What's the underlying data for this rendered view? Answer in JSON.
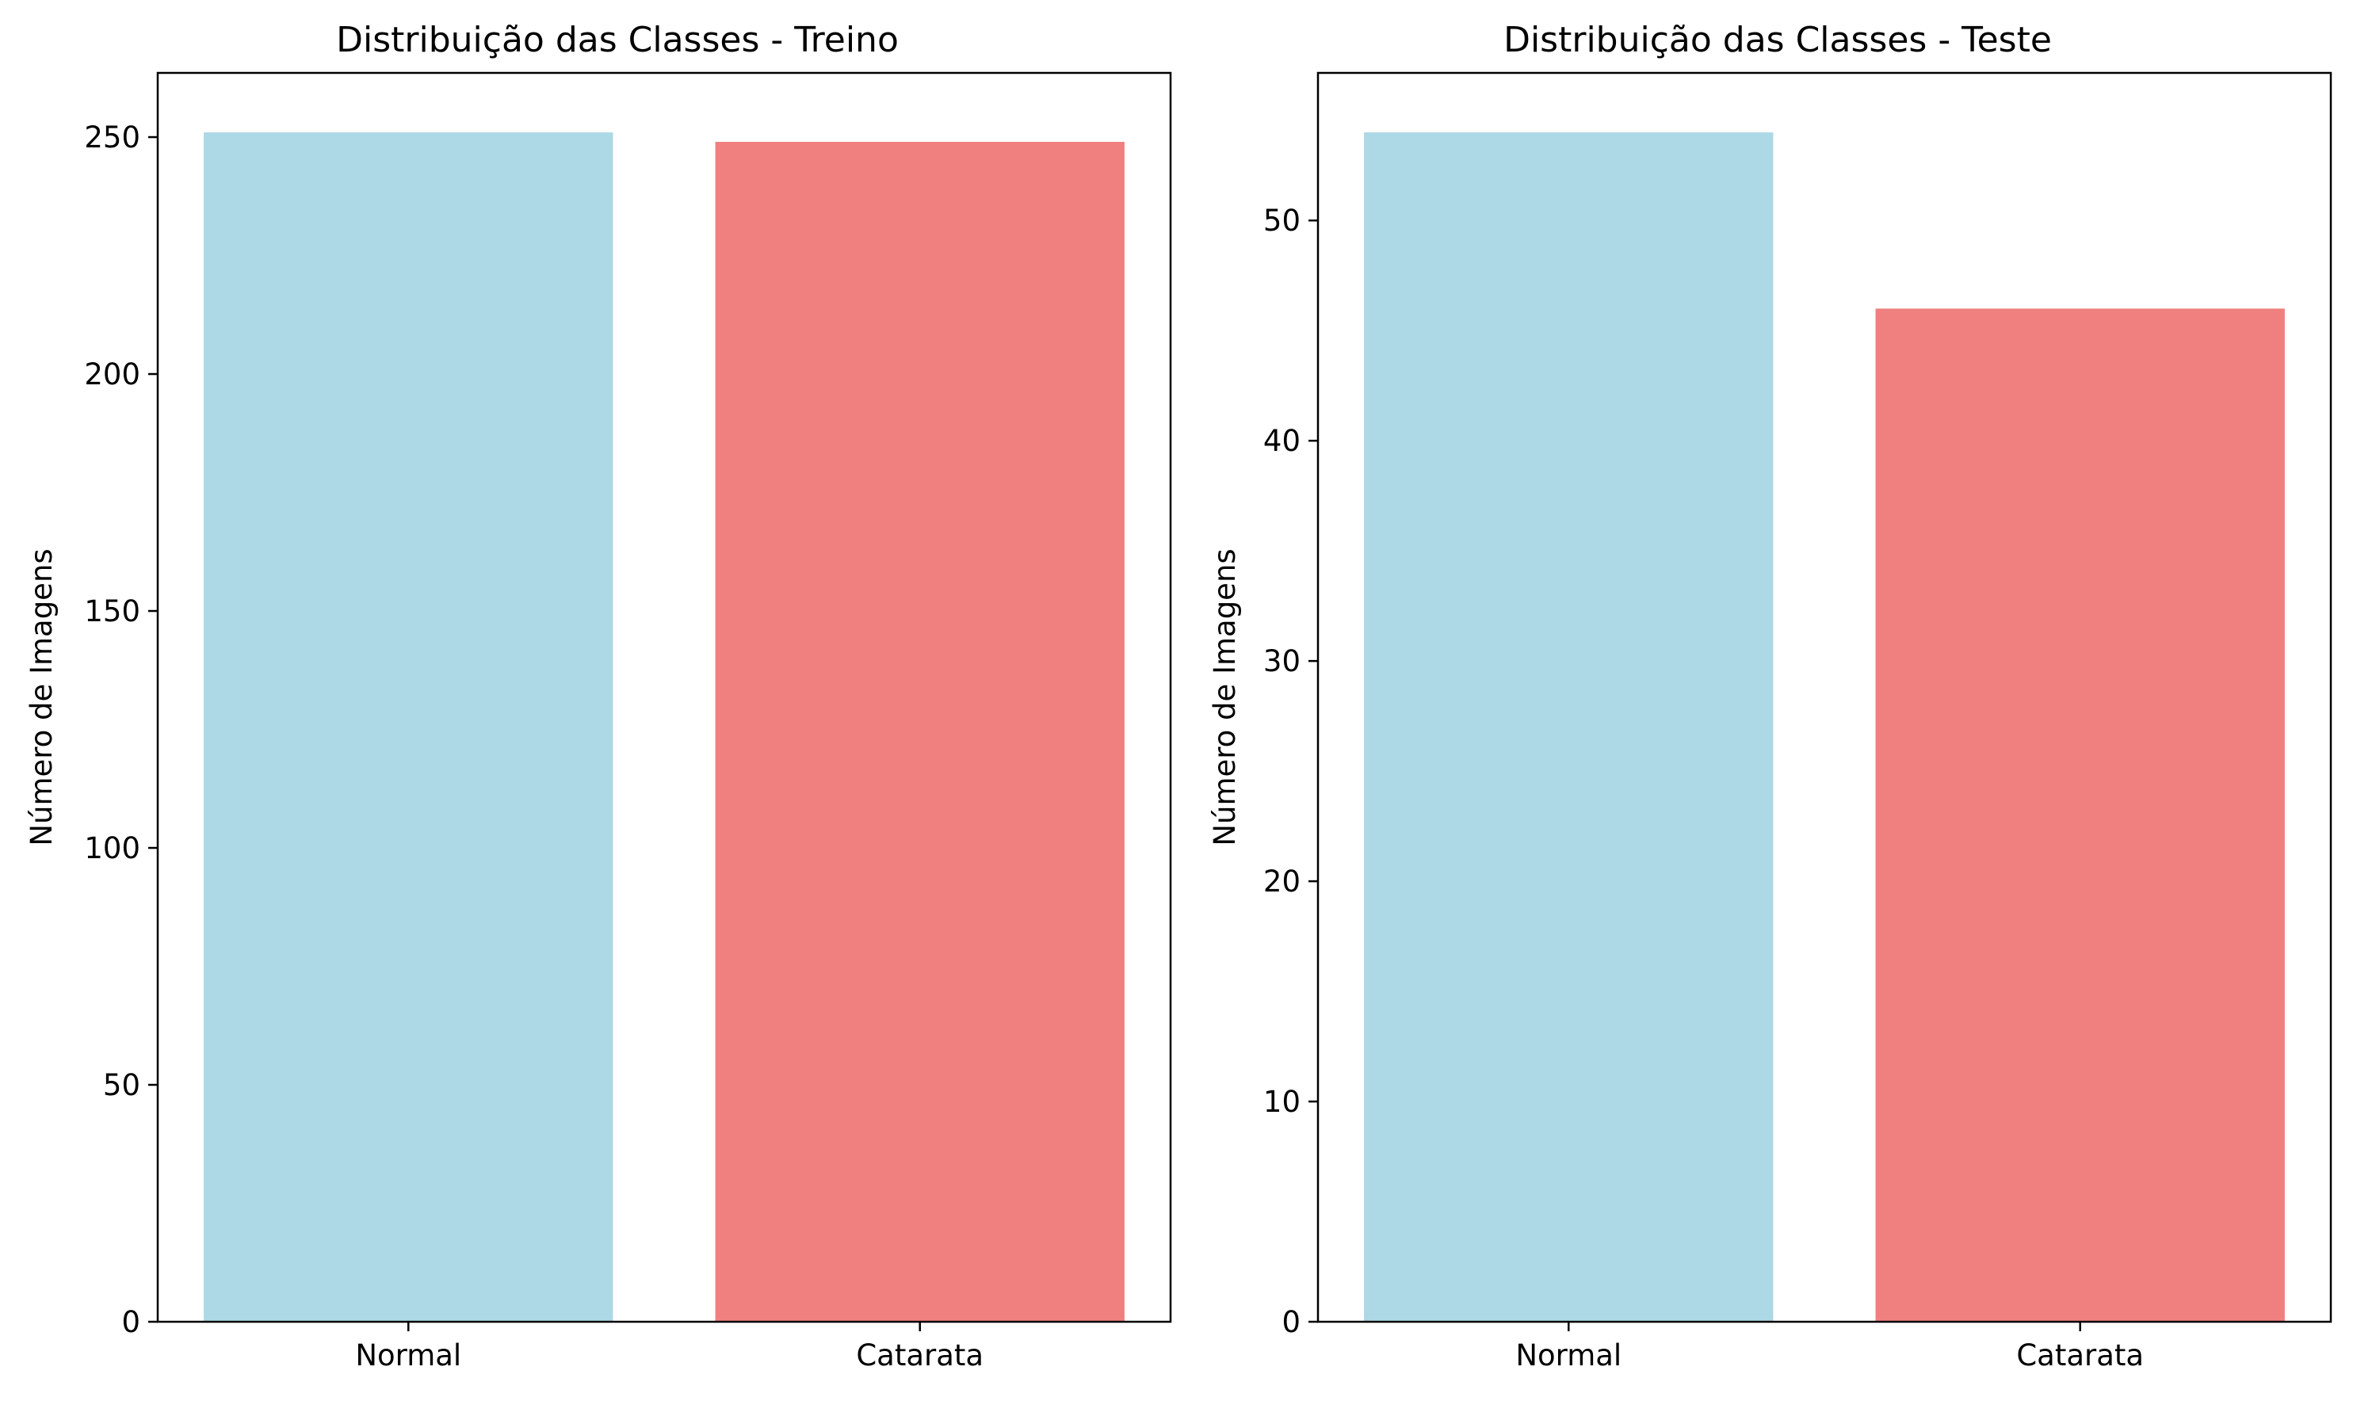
{
  "chart_data": [
    {
      "type": "bar",
      "title": "Distribuição das Classes - Treino",
      "xlabel": "",
      "ylabel": "Número de Imagens",
      "categories": [
        "Normal",
        "Catarata"
      ],
      "values": [
        251,
        249
      ],
      "colors": [
        "#add8e6",
        "#f08080"
      ],
      "ylim": [
        0,
        263.55
      ],
      "yticks": [
        0,
        50,
        100,
        150,
        200,
        250
      ],
      "grid": false,
      "legend": "none"
    },
    {
      "type": "bar",
      "title": "Distribuição das Classes - Teste",
      "xlabel": "",
      "ylabel": "Número de Imagens",
      "categories": [
        "Normal",
        "Catarata"
      ],
      "values": [
        54,
        46
      ],
      "colors": [
        "#add8e6",
        "#f08080"
      ],
      "ylim": [
        0,
        56.7
      ],
      "yticks": [
        0,
        10,
        20,
        30,
        40,
        50
      ],
      "grid": false,
      "legend": "none"
    }
  ]
}
